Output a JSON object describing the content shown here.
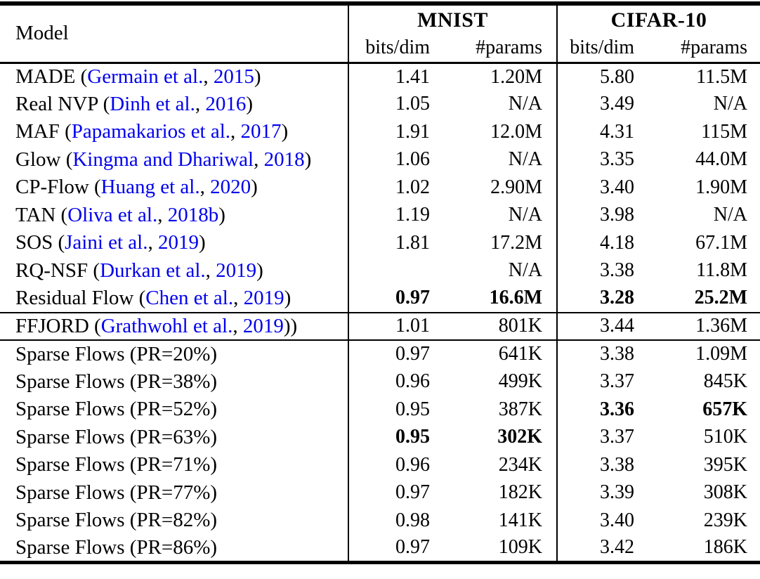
{
  "colors": {
    "citation": "#0000ee",
    "text": "#000000",
    "rule": "#000000"
  },
  "table": {
    "header": {
      "model": "Model",
      "groups": [
        {
          "label": "MNIST"
        },
        {
          "label": "CIFAR-10"
        }
      ],
      "subheaders": [
        "bits/dim",
        "#params",
        "bits/dim",
        "#params"
      ]
    },
    "rows": [
      {
        "section": "baselines",
        "model": [
          {
            "t": "MADE ("
          },
          {
            "t": "Germain et al.",
            "link": true
          },
          {
            "t": ", "
          },
          {
            "t": "2015",
            "link": true
          },
          {
            "t": ")"
          }
        ],
        "values": [
          {
            "v": "1.41"
          },
          {
            "v": "1.20M"
          },
          {
            "v": "5.80"
          },
          {
            "v": "11.5M"
          }
        ]
      },
      {
        "section": "baselines",
        "model": [
          {
            "t": "Real NVP ("
          },
          {
            "t": "Dinh et al.",
            "link": true
          },
          {
            "t": ", "
          },
          {
            "t": "2016",
            "link": true
          },
          {
            "t": ")"
          }
        ],
        "values": [
          {
            "v": "1.05"
          },
          {
            "v": "N/A"
          },
          {
            "v": "3.49"
          },
          {
            "v": "N/A"
          }
        ]
      },
      {
        "section": "baselines",
        "model": [
          {
            "t": "MAF ("
          },
          {
            "t": "Papamakarios et al.",
            "link": true
          },
          {
            "t": ", "
          },
          {
            "t": "2017",
            "link": true
          },
          {
            "t": ")"
          }
        ],
        "values": [
          {
            "v": "1.91"
          },
          {
            "v": "12.0M"
          },
          {
            "v": "4.31"
          },
          {
            "v": "115M"
          }
        ]
      },
      {
        "section": "baselines",
        "model": [
          {
            "t": "Glow ("
          },
          {
            "t": "Kingma and Dhariwal",
            "link": true
          },
          {
            "t": ", "
          },
          {
            "t": "2018",
            "link": true
          },
          {
            "t": ")"
          }
        ],
        "values": [
          {
            "v": "1.06"
          },
          {
            "v": "N/A"
          },
          {
            "v": "3.35"
          },
          {
            "v": "44.0M"
          }
        ]
      },
      {
        "section": "baselines",
        "model": [
          {
            "t": "CP-Flow ("
          },
          {
            "t": "Huang et al.",
            "link": true
          },
          {
            "t": ", "
          },
          {
            "t": "2020",
            "link": true
          },
          {
            "t": ")"
          }
        ],
        "values": [
          {
            "v": "1.02"
          },
          {
            "v": "2.90M"
          },
          {
            "v": "3.40"
          },
          {
            "v": "1.90M"
          }
        ]
      },
      {
        "section": "baselines",
        "model": [
          {
            "t": "TAN ("
          },
          {
            "t": "Oliva et al.",
            "link": true
          },
          {
            "t": ", "
          },
          {
            "t": "2018b",
            "link": true
          },
          {
            "t": ")"
          }
        ],
        "values": [
          {
            "v": "1.19"
          },
          {
            "v": "N/A"
          },
          {
            "v": "3.98"
          },
          {
            "v": "N/A"
          }
        ]
      },
      {
        "section": "baselines",
        "model": [
          {
            "t": "SOS ("
          },
          {
            "t": "Jaini et al.",
            "link": true
          },
          {
            "t": ", "
          },
          {
            "t": "2019",
            "link": true
          },
          {
            "t": ")"
          }
        ],
        "values": [
          {
            "v": "1.81"
          },
          {
            "v": "17.2M"
          },
          {
            "v": "4.18"
          },
          {
            "v": "67.1M"
          }
        ]
      },
      {
        "section": "baselines",
        "model": [
          {
            "t": "RQ-NSF ("
          },
          {
            "t": "Durkan et al.",
            "link": true
          },
          {
            "t": ", "
          },
          {
            "t": "2019",
            "link": true
          },
          {
            "t": ")"
          }
        ],
        "values": [
          {
            "v": ""
          },
          {
            "v": "N/A"
          },
          {
            "v": "3.38"
          },
          {
            "v": "11.8M"
          }
        ]
      },
      {
        "section": "baselines",
        "model": [
          {
            "t": "Residual Flow ("
          },
          {
            "t": "Chen et al.",
            "link": true
          },
          {
            "t": ", "
          },
          {
            "t": "2019",
            "link": true
          },
          {
            "t": ")"
          }
        ],
        "values": [
          {
            "v": "0.97",
            "bold": true
          },
          {
            "v": "16.6M",
            "bold": true
          },
          {
            "v": "3.28",
            "bold": true
          },
          {
            "v": "25.2M",
            "bold": true
          }
        ]
      },
      {
        "section": "ffjord",
        "model": [
          {
            "t": "FFJORD ("
          },
          {
            "t": "Grathwohl et al.",
            "link": true
          },
          {
            "t": ", "
          },
          {
            "t": "2019",
            "link": true
          },
          {
            "t": "))"
          }
        ],
        "values": [
          {
            "v": "1.01"
          },
          {
            "v": "801K"
          },
          {
            "v": "3.44"
          },
          {
            "v": "1.36M"
          }
        ]
      },
      {
        "section": "sparse",
        "model": [
          {
            "t": "Sparse Flows (PR=20%)"
          }
        ],
        "values": [
          {
            "v": "0.97"
          },
          {
            "v": "641K"
          },
          {
            "v": "3.38"
          },
          {
            "v": "1.09M"
          }
        ]
      },
      {
        "section": "sparse",
        "model": [
          {
            "t": "Sparse Flows (PR=38%)"
          }
        ],
        "values": [
          {
            "v": "0.96"
          },
          {
            "v": "499K"
          },
          {
            "v": "3.37"
          },
          {
            "v": "845K"
          }
        ]
      },
      {
        "section": "sparse",
        "model": [
          {
            "t": "Sparse Flows (PR=52%)"
          }
        ],
        "values": [
          {
            "v": "0.95"
          },
          {
            "v": "387K"
          },
          {
            "v": "3.36",
            "bold": true
          },
          {
            "v": "657K",
            "bold": true
          }
        ]
      },
      {
        "section": "sparse",
        "model": [
          {
            "t": "Sparse Flows (PR=63%)"
          }
        ],
        "values": [
          {
            "v": "0.95",
            "bold": true
          },
          {
            "v": "302K",
            "bold": true
          },
          {
            "v": "3.37"
          },
          {
            "v": "510K"
          }
        ]
      },
      {
        "section": "sparse",
        "model": [
          {
            "t": "Sparse Flows (PR=71%)"
          }
        ],
        "values": [
          {
            "v": "0.96"
          },
          {
            "v": "234K"
          },
          {
            "v": "3.38"
          },
          {
            "v": "395K"
          }
        ]
      },
      {
        "section": "sparse",
        "model": [
          {
            "t": "Sparse Flows (PR=77%)"
          }
        ],
        "values": [
          {
            "v": "0.97"
          },
          {
            "v": "182K"
          },
          {
            "v": "3.39"
          },
          {
            "v": "308K"
          }
        ]
      },
      {
        "section": "sparse",
        "model": [
          {
            "t": "Sparse Flows (PR=82%)"
          }
        ],
        "values": [
          {
            "v": "0.98"
          },
          {
            "v": "141K"
          },
          {
            "v": "3.40"
          },
          {
            "v": "239K"
          }
        ]
      },
      {
        "section": "sparse",
        "model": [
          {
            "t": "Sparse Flows (PR=86%)"
          }
        ],
        "values": [
          {
            "v": "0.97"
          },
          {
            "v": "109K"
          },
          {
            "v": "3.42"
          },
          {
            "v": "186K"
          }
        ]
      }
    ]
  }
}
